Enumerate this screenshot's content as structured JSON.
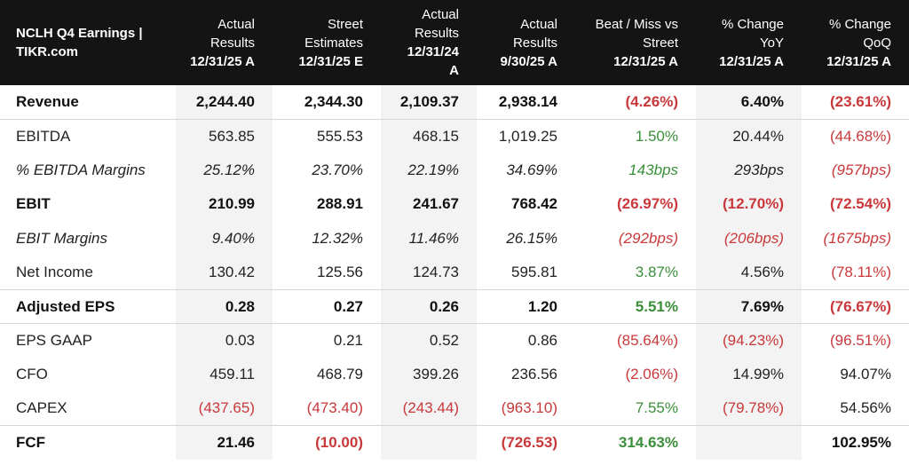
{
  "header": {
    "title_line1": "NCLH Q4 Earnings |",
    "title_line2": "TIKR.com",
    "columns": [
      {
        "l1": "Actual",
        "l2": "Results",
        "l3": "12/31/25 A",
        "l4": ""
      },
      {
        "l1": "Street",
        "l2": "Estimates",
        "l3": "12/31/25 E",
        "l4": ""
      },
      {
        "l1": "Actual",
        "l2": "Results",
        "l3": "12/31/24",
        "l4": "A"
      },
      {
        "l1": "Actual",
        "l2": "Results",
        "l3": "9/30/25 A",
        "l4": ""
      },
      {
        "l1": "Beat / Miss vs",
        "l2": "Street",
        "l3": "12/31/25 A",
        "l4": ""
      },
      {
        "l1": "% Change",
        "l2": "YoY",
        "l3": "12/31/25 A",
        "l4": ""
      },
      {
        "l1": "% Change",
        "l2": "QoQ",
        "l3": "12/31/25 A",
        "l4": ""
      }
    ]
  },
  "colors": {
    "negative": "#c9383a",
    "positive": "#3a8f3a",
    "header_bg": "#141414",
    "shade": "#f3f3f3"
  },
  "rows": [
    {
      "label": "Revenue",
      "style": "bold",
      "cells": [
        {
          "v": "2,244.40",
          "t": ""
        },
        {
          "v": "2,344.30",
          "t": ""
        },
        {
          "v": "2,109.37",
          "t": ""
        },
        {
          "v": "2,938.14",
          "t": ""
        },
        {
          "v": "(4.26%)",
          "t": "neg"
        },
        {
          "v": "6.40%",
          "t": ""
        },
        {
          "v": "(23.61%)",
          "t": "neg"
        }
      ]
    },
    {
      "label": "EBITDA",
      "style": "normal",
      "sep": true,
      "cells": [
        {
          "v": "563.85",
          "t": ""
        },
        {
          "v": "555.53",
          "t": ""
        },
        {
          "v": "468.15",
          "t": ""
        },
        {
          "v": "1,019.25",
          "t": ""
        },
        {
          "v": "1.50%",
          "t": "pos"
        },
        {
          "v": "20.44%",
          "t": ""
        },
        {
          "v": "(44.68%)",
          "t": "neg"
        }
      ]
    },
    {
      "label": "% EBITDA Margins",
      "style": "italic",
      "cells": [
        {
          "v": "25.12%",
          "t": ""
        },
        {
          "v": "23.70%",
          "t": ""
        },
        {
          "v": "22.19%",
          "t": ""
        },
        {
          "v": "34.69%",
          "t": ""
        },
        {
          "v": "143bps",
          "t": "pos"
        },
        {
          "v": "293bps",
          "t": ""
        },
        {
          "v": "(957bps)",
          "t": "neg"
        }
      ]
    },
    {
      "label": "EBIT",
      "style": "bold",
      "cells": [
        {
          "v": "210.99",
          "t": ""
        },
        {
          "v": "288.91",
          "t": ""
        },
        {
          "v": "241.67",
          "t": ""
        },
        {
          "v": "768.42",
          "t": ""
        },
        {
          "v": "(26.97%)",
          "t": "neg"
        },
        {
          "v": "(12.70%)",
          "t": "neg"
        },
        {
          "v": "(72.54%)",
          "t": "neg"
        }
      ]
    },
    {
      "label": "EBIT Margins",
      "style": "italic",
      "cells": [
        {
          "v": "9.40%",
          "t": ""
        },
        {
          "v": "12.32%",
          "t": ""
        },
        {
          "v": "11.46%",
          "t": ""
        },
        {
          "v": "26.15%",
          "t": ""
        },
        {
          "v": "(292bps)",
          "t": "neg"
        },
        {
          "v": "(206bps)",
          "t": "neg"
        },
        {
          "v": "(1675bps)",
          "t": "neg"
        }
      ]
    },
    {
      "label": "Net Income",
      "style": "normal",
      "cells": [
        {
          "v": "130.42",
          "t": ""
        },
        {
          "v": "125.56",
          "t": ""
        },
        {
          "v": "124.73",
          "t": ""
        },
        {
          "v": "595.81",
          "t": ""
        },
        {
          "v": "3.87%",
          "t": "pos"
        },
        {
          "v": "4.56%",
          "t": ""
        },
        {
          "v": "(78.11%)",
          "t": "neg"
        }
      ]
    },
    {
      "label": "Adjusted EPS",
      "style": "bold",
      "sep": true,
      "cells": [
        {
          "v": "0.28",
          "t": ""
        },
        {
          "v": "0.27",
          "t": ""
        },
        {
          "v": "0.26",
          "t": ""
        },
        {
          "v": "1.20",
          "t": ""
        },
        {
          "v": "5.51%",
          "t": "pos"
        },
        {
          "v": "7.69%",
          "t": ""
        },
        {
          "v": "(76.67%)",
          "t": "neg"
        }
      ]
    },
    {
      "label": "EPS GAAP",
      "style": "normal",
      "sep": true,
      "cells": [
        {
          "v": "0.03",
          "t": ""
        },
        {
          "v": "0.21",
          "t": ""
        },
        {
          "v": "0.52",
          "t": ""
        },
        {
          "v": "0.86",
          "t": ""
        },
        {
          "v": "(85.64%)",
          "t": "neg"
        },
        {
          "v": "(94.23%)",
          "t": "neg"
        },
        {
          "v": "(96.51%)",
          "t": "neg"
        }
      ]
    },
    {
      "label": "CFO",
      "style": "normal",
      "cells": [
        {
          "v": "459.11",
          "t": ""
        },
        {
          "v": "468.79",
          "t": ""
        },
        {
          "v": "399.26",
          "t": ""
        },
        {
          "v": "236.56",
          "t": ""
        },
        {
          "v": "(2.06%)",
          "t": "neg"
        },
        {
          "v": "14.99%",
          "t": ""
        },
        {
          "v": "94.07%",
          "t": ""
        }
      ]
    },
    {
      "label": "CAPEX",
      "style": "normal",
      "cells": [
        {
          "v": "(437.65)",
          "t": "neg"
        },
        {
          "v": "(473.40)",
          "t": "neg"
        },
        {
          "v": "(243.44)",
          "t": "neg"
        },
        {
          "v": "(963.10)",
          "t": "neg"
        },
        {
          "v": "7.55%",
          "t": "pos"
        },
        {
          "v": "(79.78%)",
          "t": "neg"
        },
        {
          "v": "54.56%",
          "t": ""
        }
      ]
    },
    {
      "label": "FCF",
      "style": "bold",
      "sep": true,
      "cells": [
        {
          "v": "21.46",
          "t": ""
        },
        {
          "v": "(10.00)",
          "t": "neg"
        },
        {
          "v": "",
          "t": ""
        },
        {
          "v": "(726.53)",
          "t": "neg"
        },
        {
          "v": "314.63%",
          "t": "pos"
        },
        {
          "v": "",
          "t": ""
        },
        {
          "v": "102.95%",
          "t": ""
        }
      ]
    }
  ]
}
